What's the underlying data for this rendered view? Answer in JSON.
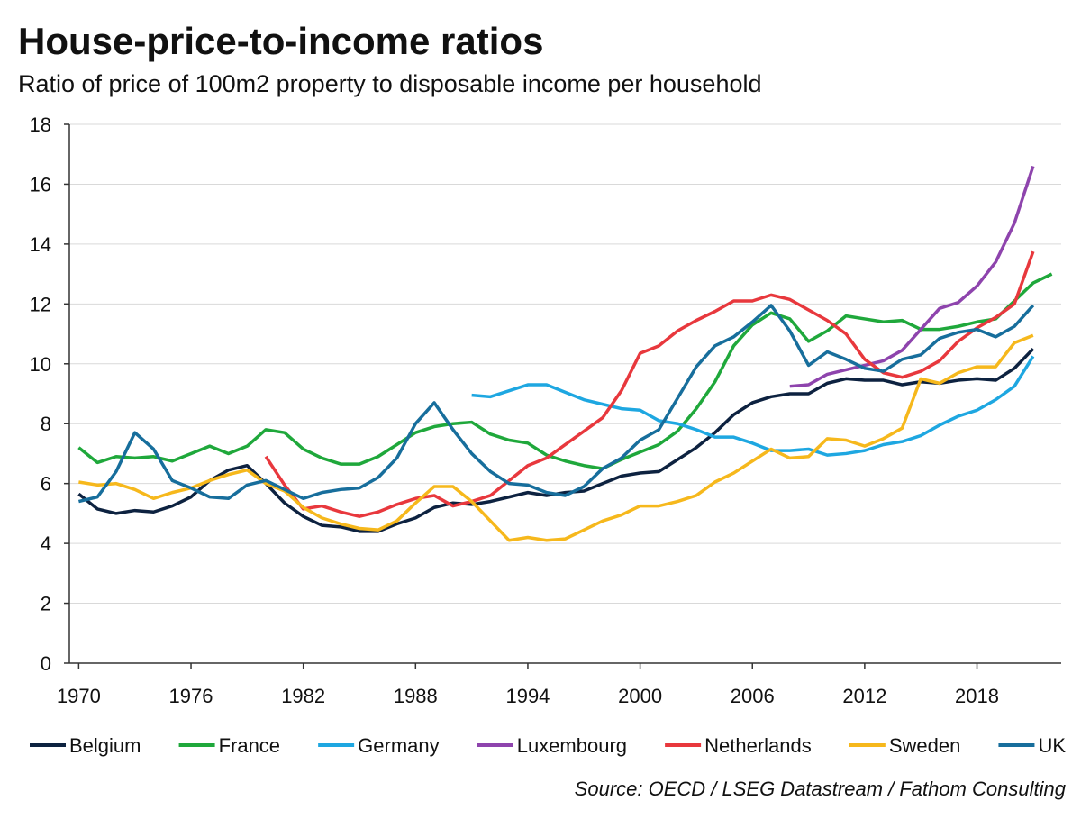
{
  "chart_data": {
    "type": "line",
    "title": "House-price-to-income ratios",
    "subtitle": "Ratio of price of 100m2 property to disposable income per household",
    "source": "Source: OECD / LSEG Datastream / Fathom Consulting",
    "x": [
      1970,
      1971,
      1972,
      1973,
      1974,
      1975,
      1976,
      1977,
      1978,
      1979,
      1980,
      1981,
      1982,
      1983,
      1984,
      1985,
      1986,
      1987,
      1988,
      1989,
      1990,
      1991,
      1992,
      1993,
      1994,
      1995,
      1996,
      1997,
      1998,
      1999,
      2000,
      2001,
      2002,
      2003,
      2004,
      2005,
      2006,
      2007,
      2008,
      2009,
      2010,
      2011,
      2012,
      2013,
      2014,
      2015,
      2016,
      2017,
      2018,
      2019,
      2020,
      2021,
      2022
    ],
    "xlim": [
      1969.5,
      2022.5
    ],
    "xticks": [
      1970,
      1976,
      1982,
      1988,
      1994,
      2000,
      2006,
      2012,
      2018
    ],
    "ylim": [
      0,
      18
    ],
    "yticks": [
      0,
      2,
      4,
      6,
      8,
      10,
      12,
      14,
      16,
      18
    ],
    "grid": true,
    "legend": "bottom",
    "series": [
      {
        "name": "Belgium",
        "color": "#0d2240",
        "values": [
          5.65,
          5.15,
          5.0,
          5.1,
          5.05,
          5.25,
          5.55,
          6.1,
          6.45,
          6.6,
          6.0,
          5.35,
          4.9,
          4.6,
          4.55,
          4.4,
          4.4,
          4.65,
          4.85,
          5.2,
          5.35,
          5.3,
          5.4,
          5.55,
          5.7,
          5.6,
          5.7,
          5.75,
          6.0,
          6.25,
          6.35,
          6.4,
          6.8,
          7.2,
          7.7,
          8.3,
          8.7,
          8.9,
          9.0,
          9.0,
          9.35,
          9.5,
          9.45,
          9.45,
          9.3,
          9.4,
          9.35,
          9.45,
          9.5,
          9.45,
          9.85,
          10.5,
          null
        ]
      },
      {
        "name": "France",
        "color": "#1fa83b",
        "values": [
          7.2,
          6.7,
          6.9,
          6.85,
          6.9,
          6.75,
          7.0,
          7.25,
          7.0,
          7.25,
          7.8,
          7.7,
          7.15,
          6.85,
          6.65,
          6.65,
          6.9,
          7.3,
          7.7,
          7.9,
          8.0,
          8.05,
          7.65,
          7.45,
          7.35,
          6.95,
          6.75,
          6.6,
          6.5,
          6.8,
          7.05,
          7.3,
          7.75,
          8.5,
          9.4,
          10.6,
          11.3,
          11.7,
          11.5,
          10.75,
          11.1,
          11.6,
          11.5,
          11.4,
          11.45,
          11.15,
          11.15,
          11.25,
          11.4,
          11.5,
          12.1,
          12.7,
          13.0
        ]
      },
      {
        "name": "Germany",
        "color": "#1ea7e1",
        "values": [
          null,
          null,
          null,
          null,
          null,
          null,
          null,
          null,
          null,
          null,
          null,
          null,
          null,
          null,
          null,
          null,
          null,
          null,
          null,
          null,
          null,
          8.95,
          8.9,
          9.1,
          9.3,
          9.3,
          9.05,
          8.8,
          8.65,
          8.5,
          8.45,
          8.1,
          8.0,
          7.8,
          7.55,
          7.55,
          7.35,
          7.1,
          7.1,
          7.15,
          6.95,
          7.0,
          7.1,
          7.3,
          7.4,
          7.6,
          7.95,
          8.25,
          8.45,
          8.8,
          9.25,
          10.25,
          null
        ]
      },
      {
        "name": "Luxembourg",
        "color": "#8e44ad",
        "values": [
          null,
          null,
          null,
          null,
          null,
          null,
          null,
          null,
          null,
          null,
          null,
          null,
          null,
          null,
          null,
          null,
          null,
          null,
          null,
          null,
          null,
          null,
          null,
          null,
          null,
          null,
          null,
          null,
          null,
          null,
          null,
          null,
          null,
          null,
          null,
          null,
          null,
          null,
          9.25,
          9.3,
          9.65,
          9.8,
          9.95,
          10.1,
          10.45,
          11.15,
          11.85,
          12.05,
          12.6,
          13.4,
          14.7,
          16.6,
          null
        ]
      },
      {
        "name": "Netherlands",
        "color": "#e8383d",
        "values": [
          null,
          null,
          null,
          null,
          null,
          null,
          null,
          null,
          null,
          null,
          6.9,
          5.95,
          5.15,
          5.25,
          5.05,
          4.9,
          5.05,
          5.3,
          5.5,
          5.6,
          5.25,
          5.4,
          5.6,
          6.1,
          6.6,
          6.85,
          7.3,
          7.75,
          8.2,
          9.1,
          10.35,
          10.6,
          11.1,
          11.45,
          11.75,
          12.1,
          12.1,
          12.3,
          12.15,
          11.8,
          11.45,
          11.0,
          10.15,
          9.7,
          9.55,
          9.75,
          10.1,
          10.75,
          11.2,
          11.55,
          12.0,
          13.75,
          null
        ]
      },
      {
        "name": "Sweden",
        "color": "#f6b81c",
        "values": [
          6.05,
          5.95,
          6.0,
          5.8,
          5.5,
          5.7,
          5.85,
          6.1,
          6.3,
          6.45,
          6.0,
          5.75,
          5.2,
          4.85,
          4.65,
          4.5,
          4.45,
          4.75,
          5.35,
          5.9,
          5.9,
          5.4,
          4.75,
          4.1,
          4.2,
          4.1,
          4.15,
          4.45,
          4.75,
          4.95,
          5.25,
          5.25,
          5.4,
          5.6,
          6.05,
          6.35,
          6.75,
          7.15,
          6.85,
          6.9,
          7.5,
          7.45,
          7.25,
          7.5,
          7.85,
          9.5,
          9.35,
          9.7,
          9.9,
          9.9,
          10.7,
          10.95,
          null
        ]
      },
      {
        "name": "UK",
        "color": "#176e9c",
        "values": [
          5.4,
          5.55,
          6.4,
          7.7,
          7.15,
          6.1,
          5.85,
          5.55,
          5.5,
          5.95,
          6.1,
          5.8,
          5.5,
          5.7,
          5.8,
          5.85,
          6.2,
          6.85,
          8.0,
          8.7,
          7.8,
          7.0,
          6.4,
          6.0,
          5.95,
          5.7,
          5.6,
          5.9,
          6.5,
          6.85,
          7.45,
          7.8,
          8.85,
          9.9,
          10.6,
          10.9,
          11.4,
          11.95,
          11.1,
          9.95,
          10.4,
          10.15,
          9.85,
          9.75,
          10.15,
          10.3,
          10.85,
          11.05,
          11.15,
          10.9,
          11.25,
          11.95,
          null
        ]
      }
    ]
  }
}
